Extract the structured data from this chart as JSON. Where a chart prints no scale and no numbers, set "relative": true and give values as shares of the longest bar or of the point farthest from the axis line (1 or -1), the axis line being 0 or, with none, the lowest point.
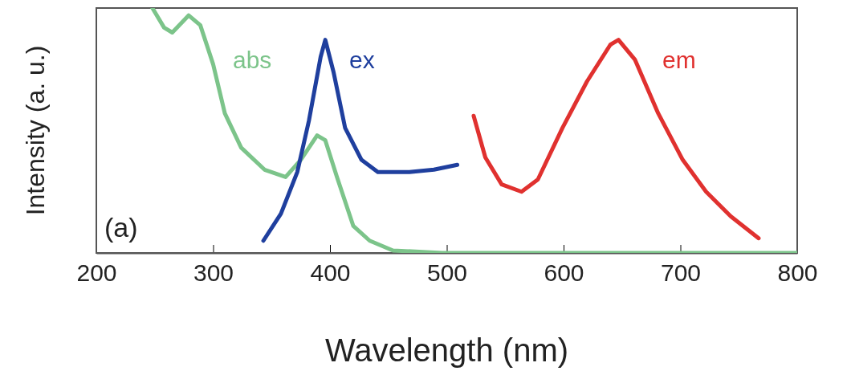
{
  "chart_data": {
    "type": "line",
    "xlabel": "Wavelength (nm)",
    "ylabel": "Intensity (a. u.)",
    "relative": true,
    "xlim": [
      200,
      800
    ],
    "xticks": [
      200,
      300,
      400,
      500,
      600,
      700,
      800
    ],
    "annotations": [
      "(a)"
    ],
    "series": [
      {
        "name": "abs",
        "color": "#7cc48a",
        "x": [
          248,
          258,
          265,
          279,
          289,
          300,
          310,
          324,
          344,
          362,
          375,
          389,
          396,
          406,
          420,
          434,
          454,
          496,
          800
        ],
        "values": [
          1.0,
          0.92,
          0.9,
          0.97,
          0.93,
          0.77,
          0.57,
          0.43,
          0.34,
          0.31,
          0.38,
          0.48,
          0.46,
          0.31,
          0.11,
          0.05,
          0.01,
          0,
          0
        ]
      },
      {
        "name": "ex",
        "color": "#1f3f9e",
        "x": [
          343,
          358,
          372,
          382,
          392,
          396,
          403,
          413,
          427,
          441,
          454,
          468,
          489,
          509
        ],
        "values": [
          0.05,
          0.16,
          0.33,
          0.54,
          0.8,
          0.87,
          0.74,
          0.51,
          0.38,
          0.33,
          0.33,
          0.33,
          0.34,
          0.36
        ]
      },
      {
        "name": "em",
        "color": "#e0312f",
        "x": [
          523,
          533,
          547,
          564,
          578,
          599,
          620,
          640,
          647,
          661,
          681,
          702,
          722,
          743,
          767
        ],
        "values": [
          0.56,
          0.39,
          0.28,
          0.25,
          0.3,
          0.51,
          0.7,
          0.85,
          0.87,
          0.79,
          0.57,
          0.38,
          0.25,
          0.15,
          0.06
        ]
      }
    ]
  }
}
